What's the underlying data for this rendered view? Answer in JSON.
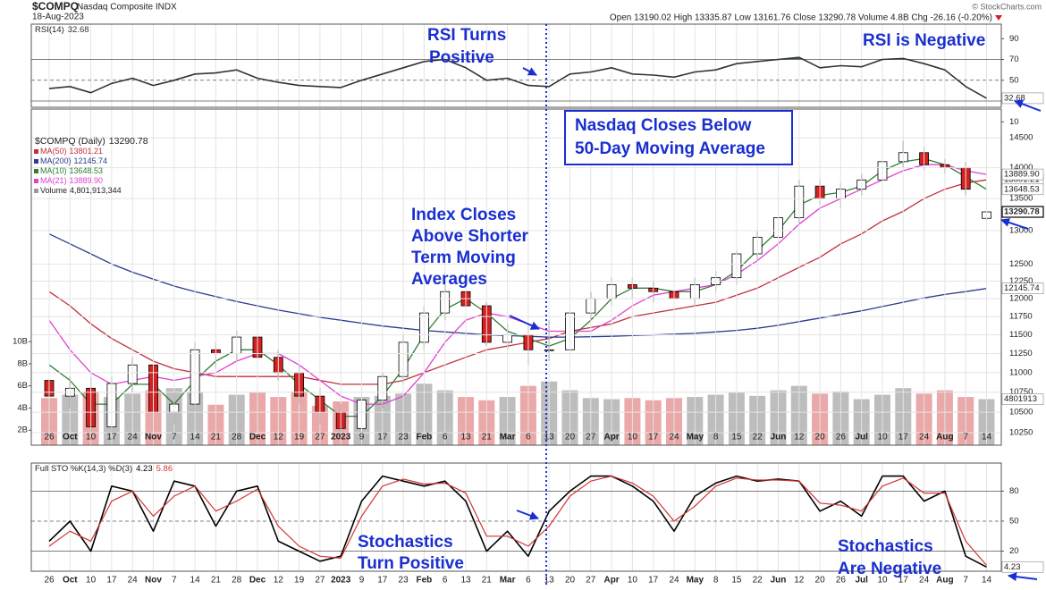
{
  "header": {
    "symbol": "$COMPQ",
    "name": "Nasdaq Composite INDX",
    "date": "18-Aug-2023",
    "quote": "Open 13190.02 High 13335.87 Low 13161.76 Close 13290.78 Volume 4.8B Chg -26.16 (-0.20%)",
    "credit": "© StockCharts.com"
  },
  "annotations": {
    "rsi_positive": [
      "RSI Turns",
      "Positive"
    ],
    "rsi_negative": "RSI is Negative",
    "below_ma": [
      "Nasdaq Closes Below",
      "50-Day Moving Average"
    ],
    "above_ma": [
      "Index Closes",
      "Above Shorter",
      "Term Moving",
      "Averages"
    ],
    "sto_positive": [
      "Stochastics",
      "Turn Positive"
    ],
    "sto_negative": [
      "Stochastics",
      "Are Negative"
    ]
  },
  "chart_data": [
    {
      "type": "line",
      "title": "RSI(14)",
      "ylim": [
        24,
        104
      ],
      "yticks": [
        90,
        70,
        50,
        10
      ],
      "reference_lines": [
        70,
        50,
        30
      ],
      "overbought_color": "#3d6b3d",
      "series": [
        {
          "color": "#333333",
          "values": [
            42,
            44,
            38,
            47,
            52,
            45,
            50,
            56,
            57,
            60,
            52,
            48,
            45,
            44,
            43,
            50,
            56,
            62,
            68,
            70,
            62,
            50,
            52,
            45,
            44,
            56,
            58,
            62,
            56,
            55,
            53,
            58,
            60,
            66,
            68,
            70,
            72,
            62,
            64,
            63,
            70,
            71,
            66,
            60,
            44,
            32.68
          ]
        }
      ]
    },
    {
      "type": "candlestick",
      "title": "$COMPQ (Daily)",
      "log": true,
      "grid": true,
      "categories": [
        "26",
        "Oct",
        "10",
        "17",
        "24",
        "Nov",
        "7",
        "14",
        "21",
        "28",
        "Dec",
        "12",
        "19",
        "27",
        "2023",
        "9",
        "17",
        "23",
        "Feb",
        "6",
        "13",
        "21",
        "Mar",
        "6",
        "13",
        "20",
        "27",
        "Apr",
        "10",
        "17",
        "24",
        "May",
        "8",
        "15",
        "22",
        "Jun",
        "12",
        "20",
        "26",
        "Jul",
        "10",
        "17",
        "24",
        "Aug",
        "7",
        "14"
      ],
      "ylim": [
        10100,
        15000
      ],
      "yticks": [
        14500,
        14000,
        13500,
        13000,
        12500,
        12250,
        12000,
        11750,
        11500,
        11250,
        11000,
        10750,
        10500,
        10250
      ],
      "ohlc": {
        "up_color": "#ffffff",
        "down_color": "#d42020",
        "open": [
          10900,
          10700,
          10800,
          10320,
          10860,
          11100,
          10500,
          10600,
          11300,
          11250,
          11470,
          11200,
          11000,
          10700,
          10500,
          10300,
          10650,
          10950,
          11400,
          11800,
          12100,
          11900,
          11400,
          11500,
          11300,
          11300,
          11800,
          12000,
          12200,
          12150,
          12100,
          12000,
          12200,
          12300,
          12650,
          12900,
          13200,
          13700,
          13500,
          13650,
          13800,
          14100,
          14250,
          14050,
          14000,
          13190.02
        ],
        "high": [
          11050,
          10950,
          10950,
          10950,
          11200,
          11200,
          10750,
          11400,
          11400,
          11550,
          11550,
          11300,
          11100,
          10800,
          10600,
          10700,
          11000,
          11500,
          11900,
          12250,
          12200,
          11950,
          11650,
          11650,
          11700,
          11900,
          12100,
          12300,
          12300,
          12250,
          12200,
          12300,
          12400,
          12700,
          13000,
          13300,
          13800,
          13800,
          13750,
          13900,
          14200,
          14450,
          14350,
          14150,
          14100,
          13335.87
        ],
        "low": [
          10550,
          10550,
          10150,
          10250,
          10750,
          10400,
          10350,
          10500,
          11050,
          11150,
          11050,
          10900,
          10600,
          10350,
          10200,
          10200,
          10550,
          10850,
          11300,
          11700,
          11800,
          11350,
          11300,
          11100,
          11150,
          11200,
          11700,
          11900,
          12000,
          11950,
          11850,
          11900,
          12100,
          12200,
          12550,
          12800,
          13100,
          13400,
          13350,
          13550,
          13700,
          14000,
          13950,
          13900,
          13550,
          13161.76
        ],
        "close": [
          10700,
          10800,
          10320,
          10860,
          11100,
          10500,
          10600,
          11300,
          11250,
          11470,
          11200,
          11000,
          10700,
          10500,
          10300,
          10650,
          10950,
          11400,
          11800,
          12100,
          11900,
          11400,
          11500,
          11300,
          11300,
          11800,
          12000,
          12200,
          12150,
          12100,
          12000,
          12200,
          12300,
          12650,
          12900,
          13200,
          13700,
          13500,
          13650,
          13800,
          14100,
          14250,
          14050,
          14000,
          13650,
          13290.78
        ]
      },
      "series": [
        {
          "name": "MA(50)",
          "color": "#c0303a",
          "values": [
            12100,
            11900,
            11650,
            11450,
            11300,
            11150,
            11050,
            11000,
            10950,
            10950,
            10950,
            10950,
            10950,
            10900,
            10850,
            10850,
            10850,
            10900,
            11000,
            11100,
            11200,
            11300,
            11350,
            11400,
            11450,
            11550,
            11600,
            11650,
            11750,
            11800,
            11850,
            11900,
            11950,
            12050,
            12150,
            12300,
            12450,
            12600,
            12800,
            12950,
            13150,
            13300,
            13500,
            13650,
            13750,
            13801.21
          ]
        },
        {
          "name": "MA(200)",
          "color": "#2b3a8f",
          "values": [
            12950,
            12800,
            12650,
            12500,
            12380,
            12280,
            12180,
            12100,
            12030,
            11960,
            11900,
            11840,
            11790,
            11740,
            11700,
            11660,
            11620,
            11590,
            11560,
            11540,
            11520,
            11500,
            11490,
            11480,
            11470,
            11470,
            11475,
            11480,
            11490,
            11500,
            11510,
            11520,
            11540,
            11560,
            11590,
            11630,
            11680,
            11730,
            11780,
            11830,
            11890,
            11950,
            12010,
            12060,
            12100,
            12145.74
          ]
        },
        {
          "name": "MA(10)",
          "color": "#2e7d32",
          "values": [
            11100,
            10900,
            10600,
            10600,
            10850,
            10850,
            10600,
            10900,
            11150,
            11300,
            11300,
            11100,
            10850,
            10650,
            10450,
            10450,
            10700,
            11050,
            11500,
            11850,
            12000,
            11800,
            11550,
            11450,
            11350,
            11450,
            11700,
            12000,
            12150,
            12150,
            12100,
            12100,
            12200,
            12400,
            12700,
            13000,
            13400,
            13550,
            13600,
            13700,
            13950,
            14100,
            14150,
            14050,
            13850,
            13648.53
          ]
        },
        {
          "name": "MA(21)",
          "color": "#e040d0",
          "last_label": "13889.90",
          "values": [
            11700,
            11300,
            11000,
            10850,
            10900,
            10950,
            10900,
            10950,
            11000,
            11150,
            11250,
            11250,
            11100,
            10900,
            10700,
            10600,
            10600,
            10700,
            11000,
            11400,
            11700,
            11800,
            11750,
            11650,
            11550,
            11550,
            11550,
            11700,
            11900,
            12050,
            12100,
            12150,
            12200,
            12350,
            12550,
            12800,
            13100,
            13350,
            13500,
            13650,
            13800,
            13950,
            14050,
            14050,
            13950,
            13889.9
          ]
        }
      ],
      "volume": {
        "name": "Volume",
        "last_label": "4,801,913,344",
        "tag_label": "4801913",
        "up_color": "#bdbdbd",
        "down_color": "#eaa8a8",
        "ylim": [
          0,
          31000000000
        ],
        "yticks": [
          {
            "value": 10000000000,
            "label": "10B"
          },
          {
            "value": 8000000000,
            "label": "8B"
          },
          {
            "value": 6000000000,
            "label": "6B"
          },
          {
            "value": 4000000000,
            "label": "4B"
          },
          {
            "value": 2000000000,
            "label": "2B"
          }
        ],
        "values": [
          4900000000.0,
          5200000000.0,
          5500000000.0,
          5000000000.0,
          5300000000.0,
          5600000000.0,
          5800000000.0,
          5400000000.0,
          4300000000.0,
          5200000000.0,
          5400000000.0,
          5000000000.0,
          5500000000.0,
          4200000000.0,
          4600000000.0,
          5000000000.0,
          5100000000.0,
          5300000000.0,
          6200000000.0,
          5600000000.0,
          5000000000.0,
          4700000000.0,
          5000000000.0,
          6000000000.0,
          6400000000.0,
          5600000000.0,
          4900000000.0,
          4800000000.0,
          4900000000.0,
          4700000000.0,
          4900000000.0,
          5000000000.0,
          5200000000.0,
          5400000000.0,
          5100000000.0,
          5600000000.0,
          6000000000.0,
          5300000000.0,
          5500000000.0,
          4800000000.0,
          5200000000.0,
          5800000000.0,
          5300000000.0,
          5600000000.0,
          5000000000.0,
          4801913344
        ]
      }
    },
    {
      "type": "line",
      "title": "Full STO %K(14,3) %D(3)",
      "categories": [
        "26",
        "Oct",
        "10",
        "17",
        "24",
        "Nov",
        "7",
        "14",
        "21",
        "28",
        "Dec",
        "12",
        "19",
        "27",
        "2023",
        "9",
        "17",
        "23",
        "Feb",
        "6",
        "13",
        "21",
        "Mar",
        "6",
        "13",
        "20",
        "27",
        "Apr",
        "10",
        "17",
        "24",
        "May",
        "8",
        "15",
        "22",
        "Jun",
        "12",
        "20",
        "26",
        "Jul",
        "10",
        "17",
        "24",
        "Aug",
        "7",
        "14"
      ],
      "ylim": [
        0,
        108
      ],
      "yticks": [
        80,
        50,
        20
      ],
      "reference_lines": [
        80,
        50,
        20
      ],
      "series": [
        {
          "color": "#000000",
          "values": [
            30,
            50,
            20,
            85,
            80,
            40,
            90,
            85,
            45,
            80,
            85,
            30,
            20,
            10,
            15,
            70,
            95,
            90,
            85,
            90,
            70,
            20,
            40,
            15,
            60,
            80,
            95,
            95,
            85,
            70,
            40,
            75,
            88,
            95,
            90,
            92,
            90,
            60,
            70,
            55,
            95,
            95,
            70,
            80,
            15,
            4.23
          ]
        },
        {
          "color": "#d33333",
          "values": [
            25,
            40,
            30,
            70,
            80,
            55,
            75,
            85,
            60,
            70,
            82,
            45,
            25,
            15,
            13,
            55,
            85,
            92,
            87,
            88,
            78,
            35,
            35,
            25,
            45,
            75,
            90,
            95,
            88,
            75,
            50,
            65,
            85,
            93,
            91,
            91,
            90,
            68,
            66,
            60,
            85,
            93,
            78,
            78,
            30,
            5.86
          ]
        }
      ]
    }
  ]
}
